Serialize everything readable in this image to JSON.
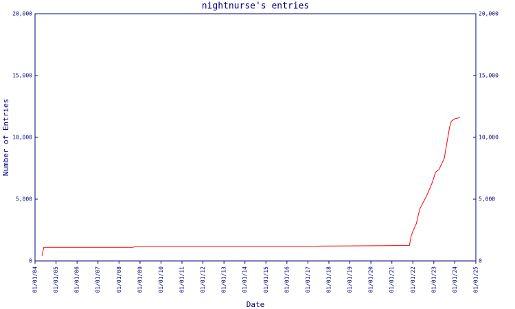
{
  "chart_data": {
    "type": "line",
    "title": "nightnurse's entries",
    "x_label": "Date",
    "y_label": "Number of Entries",
    "x": [
      "2004-05-01",
      "2004-06-01",
      "2008-09-01",
      "2008-10-01",
      "2017-06-01",
      "2017-07-01",
      "2021-11-01",
      "2021-12-01",
      "2022-01-01",
      "2022-03-01",
      "2022-05-01",
      "2022-09-01",
      "2022-12-01",
      "2023-02-01",
      "2023-04-01",
      "2023-07-01",
      "2023-10-01",
      "2023-11-01",
      "2024-01-01",
      "2024-04-01"
    ],
    "values": [
      400,
      1100,
      1100,
      1150,
      1150,
      1200,
      1250,
      2000,
      2400,
      3000,
      4200,
      5300,
      6300,
      7200,
      7400,
      8300,
      10800,
      11300,
      11500,
      11600
    ],
    "color": "#ff0000",
    "xlim": [
      "2004-01-01",
      "2025-01-01"
    ],
    "xticks": [
      {
        "value": "2004-01-01",
        "label": "01/01/04"
      },
      {
        "value": "2005-01-01",
        "label": "01/01/05"
      },
      {
        "value": "2006-01-01",
        "label": "01/01/06"
      },
      {
        "value": "2007-01-01",
        "label": "01/01/07"
      },
      {
        "value": "2008-01-01",
        "label": "01/01/08"
      },
      {
        "value": "2009-01-01",
        "label": "01/01/09"
      },
      {
        "value": "2010-01-01",
        "label": "01/01/10"
      },
      {
        "value": "2011-01-01",
        "label": "01/01/11"
      },
      {
        "value": "2012-01-01",
        "label": "01/01/12"
      },
      {
        "value": "2013-01-01",
        "label": "01/01/13"
      },
      {
        "value": "2014-01-01",
        "label": "01/01/14"
      },
      {
        "value": "2015-01-01",
        "label": "01/01/15"
      },
      {
        "value": "2016-01-01",
        "label": "01/01/16"
      },
      {
        "value": "2017-01-01",
        "label": "01/01/17"
      },
      {
        "value": "2018-01-01",
        "label": "01/01/18"
      },
      {
        "value": "2019-01-01",
        "label": "01/01/19"
      },
      {
        "value": "2020-01-01",
        "label": "01/01/20"
      },
      {
        "value": "2021-01-01",
        "label": "01/01/21"
      },
      {
        "value": "2022-01-01",
        "label": "01/01/22"
      },
      {
        "value": "2023-01-01",
        "label": "01/01/23"
      },
      {
        "value": "2024-01-01",
        "label": "01/01/24"
      },
      {
        "value": "2025-01-01",
        "label": "01/01/25"
      }
    ],
    "ylim": [
      0,
      20000
    ],
    "yticks": [
      0,
      {
        "value": 5000,
        "label": "5,000"
      },
      {
        "value": 10000,
        "label": "10,000"
      },
      {
        "value": 15000,
        "label": "15,000"
      },
      {
        "value": 20000,
        "label": "20,000"
      }
    ],
    "grid": false
  }
}
